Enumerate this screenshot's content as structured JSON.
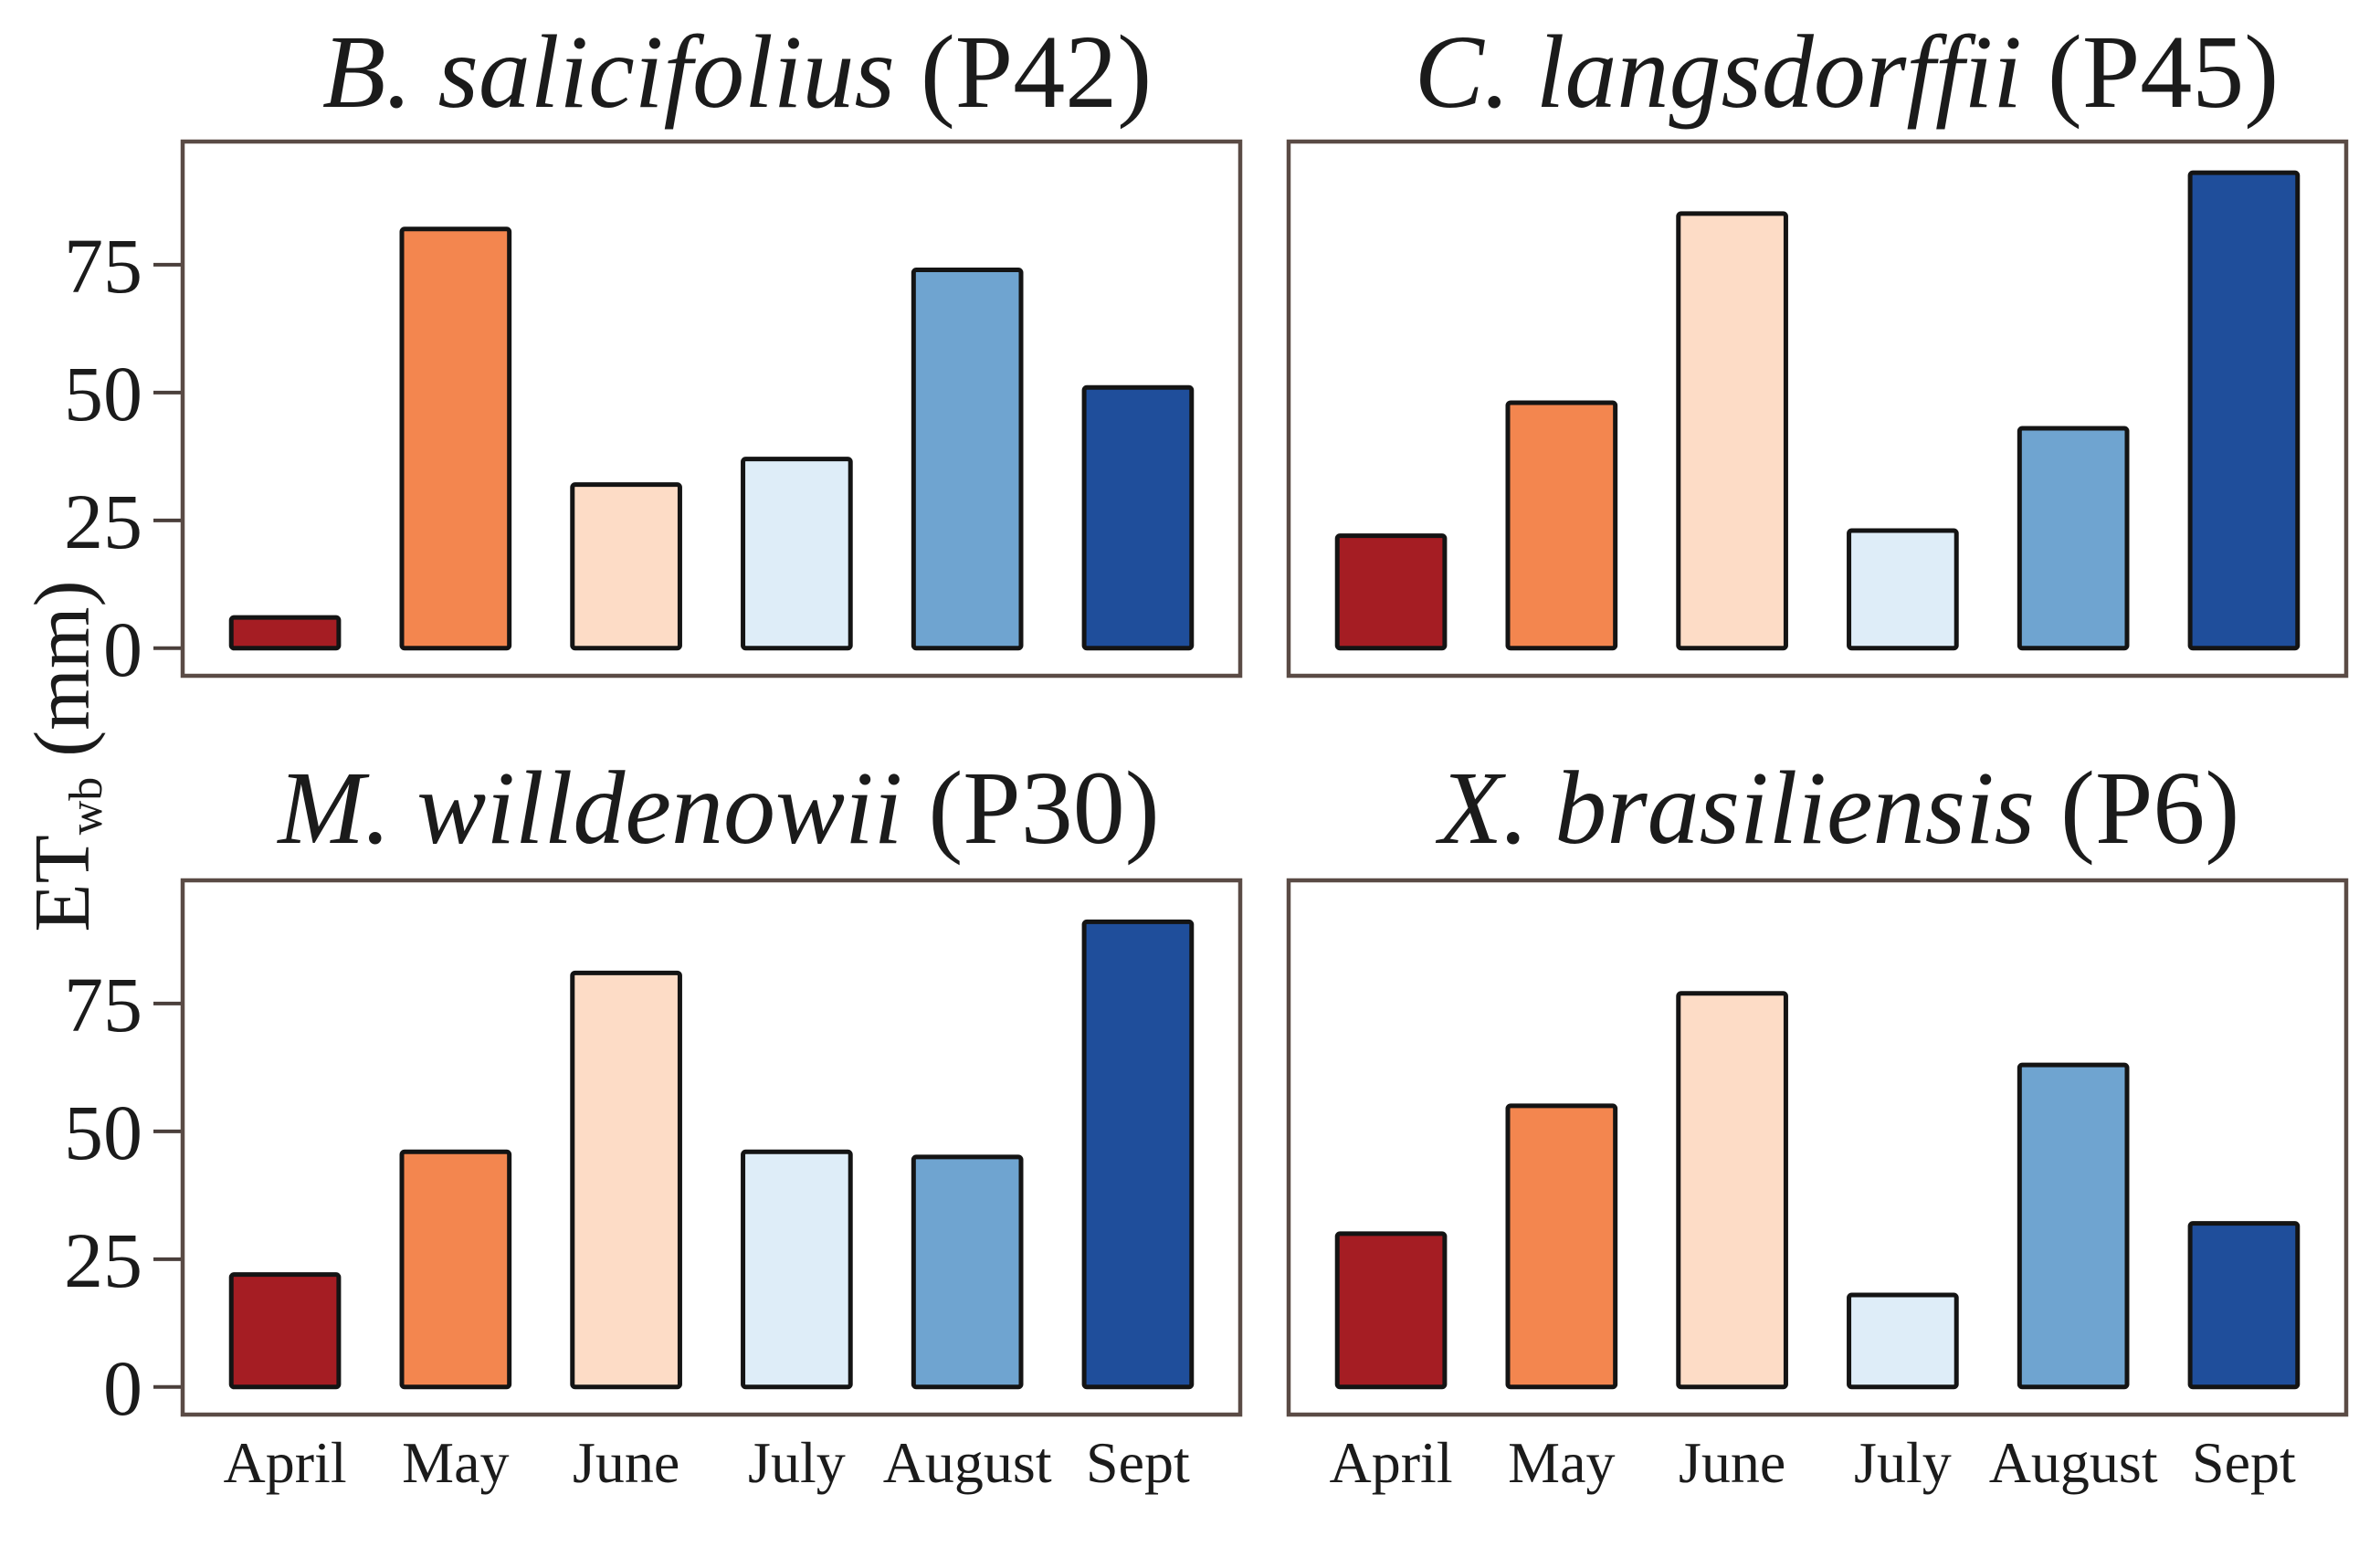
{
  "chart_data": {
    "type": "bar",
    "ylabel": {
      "main": "ET",
      "sub": "wb",
      "unit": "(mm)"
    },
    "categories": [
      "April",
      "May",
      "June",
      "July",
      "August",
      "Sept"
    ],
    "category_colors": [
      "#a51d23",
      "#f3864f",
      "#fddcc6",
      "#deedf8",
      "#6fa4d0",
      "#1f4e9b"
    ],
    "frame_color": "#5a4b45",
    "yticks": [
      0,
      25,
      50,
      75
    ],
    "ylim": [
      -5.4,
      99.1
    ],
    "grid": false,
    "panels": [
      {
        "title": {
          "species": "B. salicifolius",
          "plot": "(P42)"
        },
        "values": [
          6,
          82,
          32,
          37,
          74,
          51
        ]
      },
      {
        "title": {
          "species": "C. langsdorffii",
          "plot": "(P45)"
        },
        "values": [
          22,
          48,
          85,
          23,
          43,
          93
        ]
      },
      {
        "title": {
          "species": "M. willdenowii",
          "plot": "(P30)"
        },
        "values": [
          22,
          46,
          81,
          46,
          45,
          91
        ]
      },
      {
        "title": {
          "species": "X. brasiliensis",
          "plot": "(P6)"
        },
        "values": [
          30,
          55,
          77,
          18,
          63,
          32
        ]
      }
    ]
  }
}
